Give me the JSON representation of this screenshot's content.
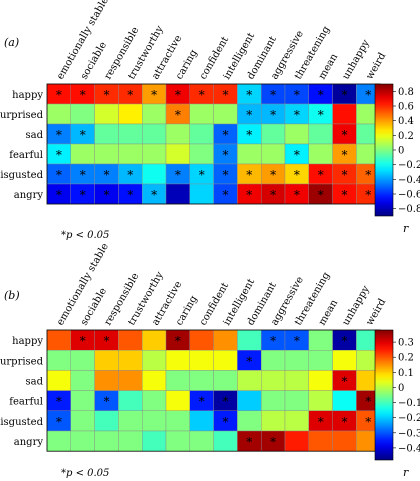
{
  "chart_data": [
    {
      "type": "heatmap",
      "panel_label": "(a)",
      "columns": [
        "emotionally stable",
        "sociable",
        "responsible",
        "trustworthy",
        "attractive",
        "caring",
        "confident",
        "intelligent",
        "dominant",
        "aggressive",
        "threatening",
        "mean",
        "unhappy",
        "weird"
      ],
      "rows": [
        "happy",
        "surprised",
        "sad",
        "fearful",
        "disgusted",
        "angry"
      ],
      "values": [
        [
          0.65,
          0.65,
          0.6,
          0.6,
          0.4,
          0.7,
          0.6,
          0.6,
          -0.3,
          -0.55,
          -0.55,
          -0.65,
          -0.85,
          -0.45
        ],
        [
          0.05,
          0.0,
          0.15,
          0.25,
          0.05,
          0.45,
          0.05,
          0.05,
          -0.35,
          -0.35,
          -0.3,
          -0.2,
          0.65,
          0.05
        ],
        [
          -0.45,
          -0.35,
          -0.05,
          -0.05,
          -0.05,
          0.05,
          -0.05,
          -0.5,
          -0.25,
          -0.05,
          0.05,
          -0.05,
          0.7,
          -0.05
        ],
        [
          -0.25,
          0.05,
          0.05,
          0.05,
          0.05,
          0.15,
          0.0,
          -0.45,
          0.05,
          0.05,
          -0.25,
          0.05,
          0.4,
          0.05
        ],
        [
          -0.5,
          -0.45,
          -0.45,
          -0.35,
          -0.2,
          -0.45,
          -0.3,
          -0.5,
          0.35,
          0.4,
          0.3,
          0.65,
          0.6,
          0.5
        ],
        [
          -0.7,
          -0.65,
          -0.7,
          -0.65,
          -0.35,
          -0.8,
          -0.3,
          -0.55,
          0.7,
          0.75,
          0.7,
          0.85,
          0.65,
          0.6
        ]
      ],
      "significant": [
        [
          1,
          1,
          1,
          1,
          1,
          1,
          1,
          1,
          1,
          1,
          1,
          1,
          1,
          1
        ],
        [
          0,
          0,
          0,
          0,
          0,
          1,
          0,
          0,
          1,
          1,
          1,
          1,
          0,
          0
        ],
        [
          1,
          1,
          0,
          0,
          0,
          0,
          0,
          1,
          1,
          0,
          0,
          0,
          1,
          0
        ],
        [
          1,
          0,
          0,
          0,
          0,
          0,
          0,
          1,
          0,
          0,
          1,
          0,
          1,
          0
        ],
        [
          1,
          1,
          1,
          1,
          0,
          1,
          1,
          1,
          1,
          1,
          1,
          1,
          1,
          1
        ],
        [
          1,
          1,
          1,
          1,
          1,
          0,
          0,
          1,
          1,
          1,
          1,
          1,
          1,
          1
        ]
      ],
      "colorbar": {
        "min": -0.9,
        "max": 0.9,
        "ticks": [
          0.8,
          0.6,
          0.4,
          0.2,
          0,
          -0.2,
          -0.4,
          -0.6,
          -0.8
        ],
        "tick_labels": [
          "0.8",
          "0.6",
          "0.4",
          "0.2",
          "0",
          "−0.2",
          "−0.4",
          "−0.6",
          "−0.8"
        ],
        "label": "r"
      },
      "note": "*p < 0.05"
    },
    {
      "type": "heatmap",
      "panel_label": "(b)",
      "columns": [
        "emotionally stable",
        "sociable",
        "responsible",
        "trustworthy",
        "attractive",
        "caring",
        "confident",
        "intelligent",
        "dominant",
        "aggressive",
        "threatening",
        "mean",
        "unhappy",
        "weird"
      ],
      "rows": [
        "happy",
        "surprised",
        "sad",
        "fearful",
        "disgusted",
        "angry"
      ],
      "values": [
        [
          0.2,
          0.3,
          0.3,
          0.2,
          0.1,
          0.35,
          0.2,
          0.15,
          -0.1,
          -0.3,
          -0.3,
          -0.05,
          -0.45,
          -0.1
        ],
        [
          -0.05,
          -0.05,
          0.1,
          0.1,
          0.0,
          0.05,
          0.05,
          0.05,
          -0.35,
          -0.05,
          -0.05,
          -0.05,
          0.05,
          0.0
        ],
        [
          0.05,
          -0.05,
          0.15,
          0.15,
          0.05,
          -0.05,
          -0.05,
          -0.05,
          0.0,
          0.0,
          0.0,
          0.05,
          0.3,
          0.1
        ],
        [
          -0.35,
          -0.05,
          -0.3,
          -0.1,
          -0.05,
          0.05,
          -0.35,
          -0.45,
          -0.2,
          -0.05,
          -0.05,
          0.0,
          -0.15,
          0.35
        ],
        [
          -0.3,
          -0.05,
          -0.1,
          -0.05,
          -0.05,
          -0.05,
          -0.2,
          -0.35,
          -0.05,
          0.0,
          0.0,
          0.3,
          0.3,
          0.2
        ],
        [
          -0.05,
          -0.05,
          -0.05,
          -0.05,
          -0.1,
          -0.05,
          -0.05,
          -0.1,
          0.35,
          0.35,
          0.25,
          0.2,
          0.2,
          0.15
        ]
      ],
      "significant": [
        [
          0,
          1,
          1,
          0,
          0,
          1,
          0,
          0,
          0,
          1,
          1,
          0,
          1,
          0
        ],
        [
          0,
          0,
          0,
          0,
          0,
          0,
          0,
          0,
          1,
          0,
          0,
          0,
          0,
          0
        ],
        [
          0,
          0,
          0,
          0,
          0,
          0,
          0,
          0,
          0,
          0,
          0,
          0,
          1,
          0
        ],
        [
          1,
          0,
          1,
          0,
          0,
          0,
          1,
          1,
          0,
          0,
          0,
          0,
          0,
          1
        ],
        [
          1,
          0,
          0,
          0,
          0,
          0,
          0,
          1,
          0,
          0,
          0,
          1,
          1,
          1
        ],
        [
          0,
          0,
          0,
          0,
          0,
          0,
          0,
          0,
          1,
          1,
          0,
          0,
          0,
          0
        ]
      ],
      "colorbar": {
        "min": -0.48,
        "max": 0.38,
        "ticks": [
          0.3,
          0.2,
          0.1,
          0,
          -0.1,
          -0.2,
          -0.3,
          -0.4
        ],
        "tick_labels": [
          "0.3",
          "0.2",
          "0.1",
          "0",
          "−0.1",
          "−0.2",
          "−0.3",
          "−0.4"
        ],
        "label": "r"
      },
      "note": "*p < 0.05"
    }
  ]
}
